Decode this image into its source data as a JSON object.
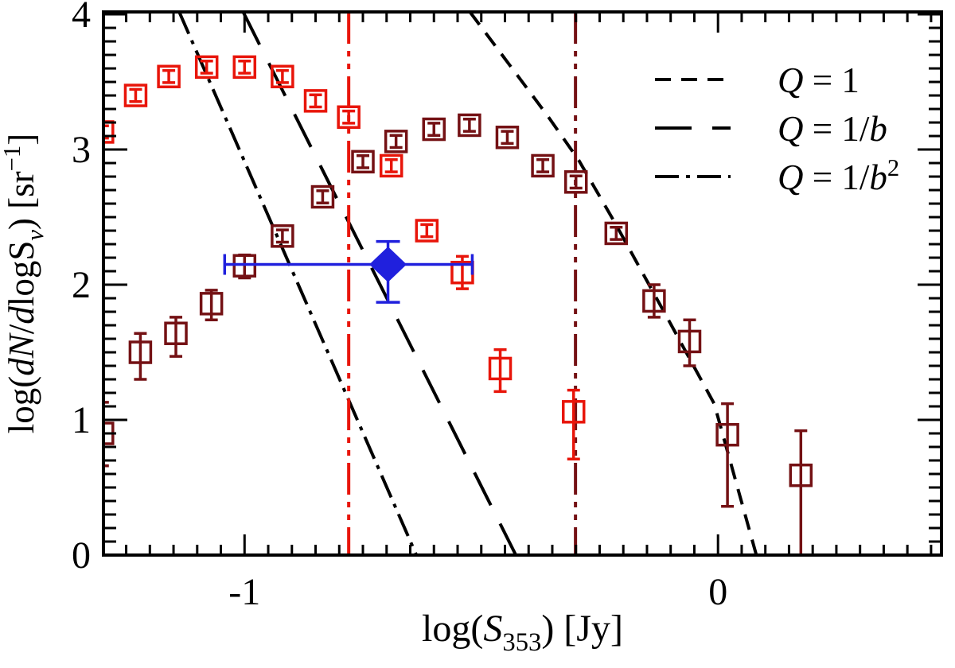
{
  "chart_data": {
    "type": "scatter",
    "title": "",
    "xlabel_parts": [
      [
        "log(",
        "n"
      ],
      [
        "S",
        "i"
      ],
      [
        "353",
        "sub"
      ],
      [
        ") [Jy]",
        "n"
      ]
    ],
    "ylabel_parts": [
      [
        "log(",
        "n"
      ],
      [
        "dN",
        "i"
      ],
      [
        "/",
        "n"
      ],
      [
        "d",
        "i"
      ],
      [
        "logS",
        "n"
      ],
      [
        "ν",
        "subi"
      ],
      [
        ") [sr",
        "n"
      ],
      [
        "−1",
        "sup"
      ],
      [
        "]",
        "n"
      ]
    ],
    "x_axis": {
      "min": -1.298,
      "max": 0.472,
      "minor_step": 0.05,
      "major_ticks": [
        {
          "v": -1,
          "label": "-1"
        },
        {
          "v": 0,
          "label": "0"
        }
      ]
    },
    "y_axis": {
      "min": 0,
      "max": 4.018,
      "minor_step": 0.1,
      "major_ticks": [
        {
          "v": 0,
          "label": "0"
        },
        {
          "v": 1,
          "label": "1"
        },
        {
          "v": 2,
          "label": "2"
        },
        {
          "v": 3,
          "label": "3"
        },
        {
          "v": 4,
          "label": "4"
        }
      ]
    },
    "colors": {
      "red": "#e8150a",
      "dark_red": "#741114",
      "blue": "#2020dd",
      "black": "#000000"
    },
    "marker": {
      "size": 26,
      "default_err": 0.045
    },
    "series": [
      {
        "name": "red-squares",
        "color_key": "red",
        "points": [
          {
            "x": -1.3,
            "y": 3.13
          },
          {
            "x": -1.23,
            "y": 3.4
          },
          {
            "x": -1.16,
            "y": 3.54
          },
          {
            "x": -1.08,
            "y": 3.61
          },
          {
            "x": -1.0,
            "y": 3.61
          },
          {
            "x": -0.92,
            "y": 3.54
          },
          {
            "x": -0.85,
            "y": 3.36
          },
          {
            "x": -0.78,
            "y": 3.24
          },
          {
            "x": -0.69,
            "y": 2.88
          },
          {
            "x": -0.615,
            "y": 2.4
          },
          {
            "x": -0.54,
            "y": 2.09,
            "lo": 1.97,
            "hi": 2.21
          },
          {
            "x": -0.46,
            "y": 1.38,
            "lo": 1.21,
            "hi": 1.52
          },
          {
            "x": -0.305,
            "y": 1.06,
            "lo": 0.71,
            "hi": 1.22
          }
        ]
      },
      {
        "name": "dark-red-squares",
        "color_key": "dark_red",
        "points": [
          {
            "x": -1.3,
            "y": 0.9,
            "lo": 0.66,
            "hi": 1.13
          },
          {
            "x": -1.22,
            "y": 1.5,
            "lo": 1.3,
            "hi": 1.64
          },
          {
            "x": -1.145,
            "y": 1.64,
            "lo": 1.47,
            "hi": 1.76
          },
          {
            "x": -1.07,
            "y": 1.86,
            "lo": 1.74,
            "hi": 1.96
          },
          {
            "x": -1.0,
            "y": 2.14,
            "lo": 2.05,
            "hi": 2.22
          },
          {
            "x": -0.92,
            "y": 2.36
          },
          {
            "x": -0.835,
            "y": 2.65
          },
          {
            "x": -0.75,
            "y": 2.91
          },
          {
            "x": -0.68,
            "y": 3.06
          },
          {
            "x": -0.6,
            "y": 3.15
          },
          {
            "x": -0.525,
            "y": 3.18
          },
          {
            "x": -0.445,
            "y": 3.09
          },
          {
            "x": -0.37,
            "y": 2.88
          },
          {
            "x": -0.3,
            "y": 2.76
          },
          {
            "x": -0.215,
            "y": 2.38
          },
          {
            "x": -0.135,
            "y": 1.88,
            "lo": 1.76,
            "hi": 2.0
          },
          {
            "x": -0.06,
            "y": 1.58,
            "lo": 1.4,
            "hi": 1.74
          },
          {
            "x": 0.02,
            "y": 0.89,
            "lo": 0.36,
            "hi": 1.12
          },
          {
            "x": 0.175,
            "y": 0.59,
            "lo": 0.0,
            "hi": 0.92
          }
        ]
      }
    ],
    "blue_point": {
      "x": -0.697,
      "y": 2.15,
      "xlo": -1.042,
      "xhi": -0.519,
      "ylo": 1.87,
      "yhi": 2.32
    },
    "model_lines": [
      {
        "name": "Q = 1",
        "dash": "20 13",
        "points": [
          [
            -0.524,
            4.018
          ],
          [
            -0.36,
            3.25
          ],
          [
            -0.294,
            2.92
          ],
          [
            -0.218,
            2.46
          ],
          [
            -0.1,
            1.71
          ],
          [
            -0.008,
            1.12
          ],
          [
            0.081,
            0
          ]
        ]
      },
      {
        "name": "Q = 1/b",
        "dash": "46 26",
        "points": [
          [
            -1.003,
            4.018
          ],
          [
            -0.427,
            0
          ]
        ]
      },
      {
        "name": "Q = 1/b2",
        "dash": "30 9 5 9",
        "points": [
          [
            -1.138,
            4.018
          ],
          [
            -0.637,
            0
          ]
        ]
      }
    ],
    "vertical_lines": [
      {
        "name": "completeness-limit-red",
        "x": -0.78,
        "color_key": "red",
        "dash": "40 9 7 9 7 9"
      },
      {
        "name": "completeness-limit-darkred",
        "x": -0.301,
        "color_key": "dark_red",
        "dash": "40 9 7 9 7 9"
      }
    ],
    "legend": {
      "position": "top-right",
      "entries": [
        {
          "dash": "20 13",
          "label_parts": [
            [
              "Q",
              "i"
            ],
            [
              " = 1",
              "n"
            ]
          ]
        },
        {
          "dash": "46 26",
          "label_parts": [
            [
              "Q",
              "i"
            ],
            [
              " = 1/",
              "n"
            ],
            [
              "b",
              "i"
            ]
          ]
        },
        {
          "dash": "30 9 5 9",
          "label_parts": [
            [
              "Q",
              "i"
            ],
            [
              " = 1/",
              "n"
            ],
            [
              "b",
              "i"
            ],
            [
              "2",
              "sup"
            ]
          ]
        }
      ]
    }
  }
}
